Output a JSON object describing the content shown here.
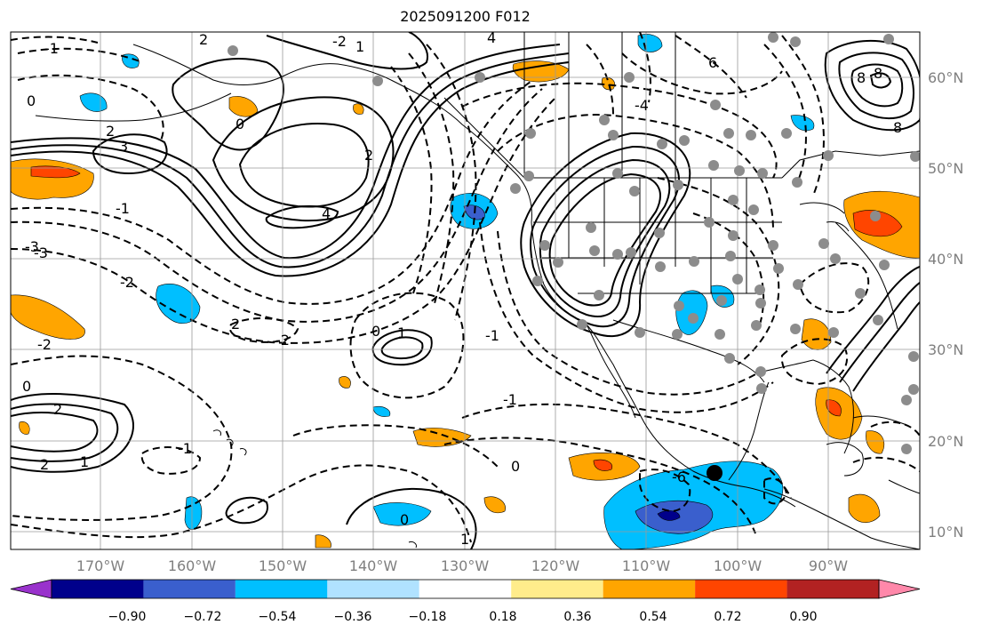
{
  "title": "2025091200 F012",
  "map": {
    "lat_labels": [
      "60°N",
      "50°N",
      "40°N",
      "30°N",
      "20°N",
      "10°N"
    ],
    "lon_labels": [
      "170°W",
      "160°W",
      "150°W",
      "140°W",
      "130°W",
      "120°W",
      "110°W",
      "100°W",
      "90°W"
    ],
    "contour_labels": [
      "-1",
      "0",
      "2",
      "4",
      "6",
      "8",
      "3",
      "1",
      "-2",
      "-3",
      "4",
      "2",
      "-1",
      "0",
      "-4",
      "2",
      "-2",
      "1",
      "0",
      "-1",
      "2",
      "0",
      "-1",
      "1",
      "-2",
      "2",
      "-2",
      "-3",
      "0",
      "1",
      "-6",
      "0",
      "2",
      "-1",
      "8",
      "8"
    ],
    "marker": "black-station-dot"
  },
  "colorbar": {
    "colors": [
      "#9932cc",
      "#00008b",
      "#3a5fcd",
      "#00bfff",
      "#b0e2ff",
      "#ffffff",
      "#ffec8b",
      "#ffa500",
      "#ff4500",
      "#b22222",
      "#ff88aa"
    ],
    "ticks": [
      "−0.90",
      "−0.72",
      "−0.54",
      "−0.36",
      "−0.18",
      "0.18",
      "0.36",
      "0.54",
      "0.72",
      "0.90"
    ]
  }
}
